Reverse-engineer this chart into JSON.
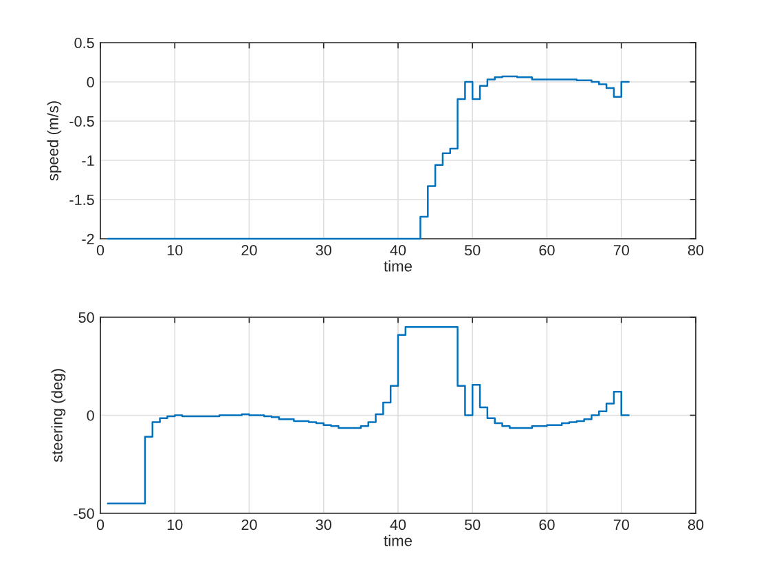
{
  "chart_data": [
    {
      "type": "step",
      "xlabel": "time",
      "ylabel": "speed (m/s)",
      "color": "#0072bd",
      "grid": true,
      "xlim": [
        0,
        80
      ],
      "xticks": [
        0,
        10,
        20,
        30,
        40,
        50,
        60,
        70,
        80
      ],
      "ylim": [
        -2,
        0.5
      ],
      "yticks": [
        -2,
        -1.5,
        -1,
        -0.5,
        0,
        0.5
      ],
      "x": [
        1,
        2,
        3,
        4,
        5,
        6,
        7,
        8,
        9,
        10,
        11,
        12,
        13,
        14,
        15,
        16,
        17,
        18,
        19,
        20,
        21,
        22,
        23,
        24,
        25,
        26,
        27,
        28,
        29,
        30,
        31,
        32,
        33,
        34,
        35,
        36,
        37,
        38,
        39,
        40,
        41,
        42,
        43,
        44,
        45,
        46,
        47,
        48,
        49,
        50,
        51,
        52,
        53,
        54,
        55,
        56,
        57,
        58,
        59,
        60,
        61,
        62,
        63,
        64,
        65,
        66,
        67,
        68,
        69,
        70,
        71
      ],
      "values": [
        -2,
        -2,
        -2,
        -2,
        -2,
        -2,
        -2,
        -2,
        -2,
        -2,
        -2,
        -2,
        -2,
        -2,
        -2,
        -2,
        -2,
        -2,
        -2,
        -2,
        -2,
        -2,
        -2,
        -2,
        -2,
        -2,
        -2,
        -2,
        -2,
        -2,
        -2,
        -2,
        -2,
        -2,
        -2,
        -2,
        -2,
        -2,
        -2,
        -2,
        -2,
        -2,
        -1.72,
        -1.33,
        -1.06,
        -0.91,
        -0.85,
        -0.22,
        0,
        -0.22,
        -0.05,
        0.03,
        0.06,
        0.07,
        0.07,
        0.06,
        0.06,
        0.03,
        0.03,
        0.03,
        0.03,
        0.03,
        0.03,
        0.02,
        0.02,
        0,
        -0.03,
        -0.08,
        -0.19,
        0,
        0
      ]
    },
    {
      "type": "step",
      "xlabel": "time",
      "ylabel": "steering (deg)",
      "color": "#0072bd",
      "grid": true,
      "xlim": [
        0,
        80
      ],
      "xticks": [
        0,
        10,
        20,
        30,
        40,
        50,
        60,
        70,
        80
      ],
      "ylim": [
        -50,
        50
      ],
      "yticks": [
        -50,
        0,
        50
      ],
      "x": [
        1,
        2,
        3,
        4,
        5,
        6,
        7,
        8,
        9,
        10,
        11,
        12,
        13,
        14,
        15,
        16,
        17,
        18,
        19,
        20,
        21,
        22,
        23,
        24,
        25,
        26,
        27,
        28,
        29,
        30,
        31,
        32,
        33,
        34,
        35,
        36,
        37,
        38,
        39,
        40,
        41,
        42,
        43,
        44,
        45,
        46,
        47,
        48,
        49,
        50,
        51,
        52,
        53,
        54,
        55,
        56,
        57,
        58,
        59,
        60,
        61,
        62,
        63,
        64,
        65,
        66,
        67,
        68,
        69,
        70,
        71
      ],
      "values": [
        -45,
        -45,
        -45,
        -45,
        -45,
        -11,
        -3.5,
        -1.5,
        -0.5,
        0,
        -0.5,
        -0.5,
        -0.5,
        -0.5,
        -0.5,
        0,
        0,
        0,
        0.5,
        0,
        0,
        -0.5,
        -1,
        -2,
        -2,
        -3,
        -3,
        -3.5,
        -4,
        -5,
        -5.5,
        -6.5,
        -6.5,
        -6.5,
        -5.5,
        -3.5,
        0.5,
        6.5,
        15,
        41,
        45,
        45,
        45,
        45,
        45,
        45,
        45,
        15,
        0,
        15.5,
        4,
        -1.5,
        -4,
        -5.5,
        -6.5,
        -6.5,
        -6.5,
        -5.5,
        -5.5,
        -5,
        -5,
        -4,
        -3.5,
        -3,
        -2,
        0,
        2,
        6,
        12,
        0,
        0
      ]
    }
  ]
}
